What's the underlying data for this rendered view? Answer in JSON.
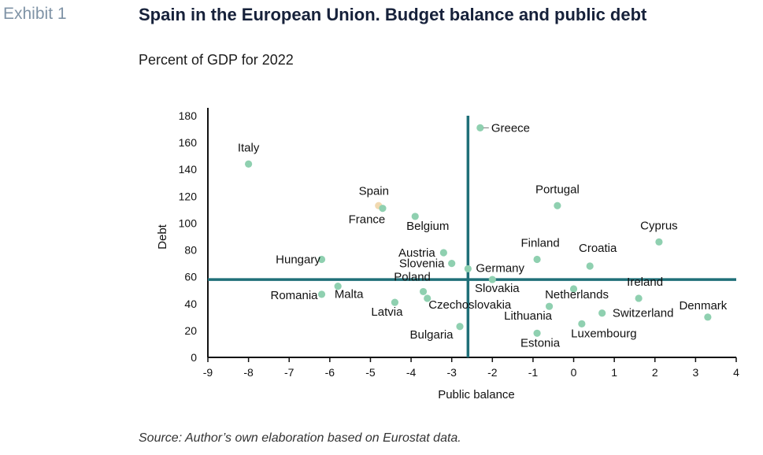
{
  "header": {
    "exhibit": "Exhibit 1",
    "title": "Spain in the European Union. Budget balance and public debt",
    "subtitle": "Percent of GDP for 2022"
  },
  "footer": {
    "source": "Source: Author’s own elaboration based on Eurostat data."
  },
  "colors": {
    "point": "#8fd0b0",
    "spain_point": "#f1d9b0",
    "reference_lines": "#1f6f78",
    "axis": "#111111"
  },
  "chart_data": {
    "type": "scatter",
    "xlabel": "Public balance",
    "ylabel": "Debt",
    "xlim": [
      -9,
      4
    ],
    "ylim": [
      0,
      180
    ],
    "x_ticks": [
      -9,
      -8,
      -7,
      -6,
      -5,
      -4,
      -3,
      -2,
      -1,
      0,
      1,
      2,
      3,
      4
    ],
    "y_ticks": [
      0,
      20,
      40,
      60,
      80,
      100,
      120,
      140,
      160,
      180
    ],
    "reference_lines": {
      "x": -2.6,
      "y": 58
    },
    "grid": false,
    "points": [
      {
        "label": "Italy",
        "x": -8.0,
        "y": 144
      },
      {
        "label": "Spain",
        "x": -4.8,
        "y": 113,
        "highlight": true
      },
      {
        "label": "France",
        "x": -4.7,
        "y": 111
      },
      {
        "label": "Belgium",
        "x": -3.9,
        "y": 105
      },
      {
        "label": "Greece",
        "x": -2.3,
        "y": 171
      },
      {
        "label": "Portugal",
        "x": -0.4,
        "y": 113
      },
      {
        "label": "Cyprus",
        "x": 2.1,
        "y": 86
      },
      {
        "label": "Hungary",
        "x": -6.2,
        "y": 73
      },
      {
        "label": "Austria",
        "x": -3.2,
        "y": 78
      },
      {
        "label": "Slovenia",
        "x": -3.0,
        "y": 70
      },
      {
        "label": "Germany",
        "x": -2.6,
        "y": 66
      },
      {
        "label": "Finland",
        "x": -0.9,
        "y": 73
      },
      {
        "label": "Croatia",
        "x": 0.4,
        "y": 68
      },
      {
        "label": "Slovakia",
        "x": -2.0,
        "y": 58
      },
      {
        "label": "Romania",
        "x": -6.2,
        "y": 47
      },
      {
        "label": "Malta",
        "x": -5.8,
        "y": 53
      },
      {
        "label": "Poland",
        "x": -3.7,
        "y": 49
      },
      {
        "label": "Czechoslovakia",
        "x": -3.6,
        "y": 44
      },
      {
        "label": "Latvia",
        "x": -4.4,
        "y": 41
      },
      {
        "label": "Netherlands",
        "x": 0.0,
        "y": 51
      },
      {
        "label": "Ireland",
        "x": 1.6,
        "y": 44
      },
      {
        "label": "Lithuania",
        "x": -0.6,
        "y": 38
      },
      {
        "label": "Switzerland",
        "x": 0.7,
        "y": 33
      },
      {
        "label": "Denmark",
        "x": 3.3,
        "y": 30
      },
      {
        "label": "Bulgaria",
        "x": -2.8,
        "y": 23
      },
      {
        "label": "Luxembourg",
        "x": 0.2,
        "y": 25
      },
      {
        "label": "Estonia",
        "x": -0.9,
        "y": 18
      }
    ]
  }
}
